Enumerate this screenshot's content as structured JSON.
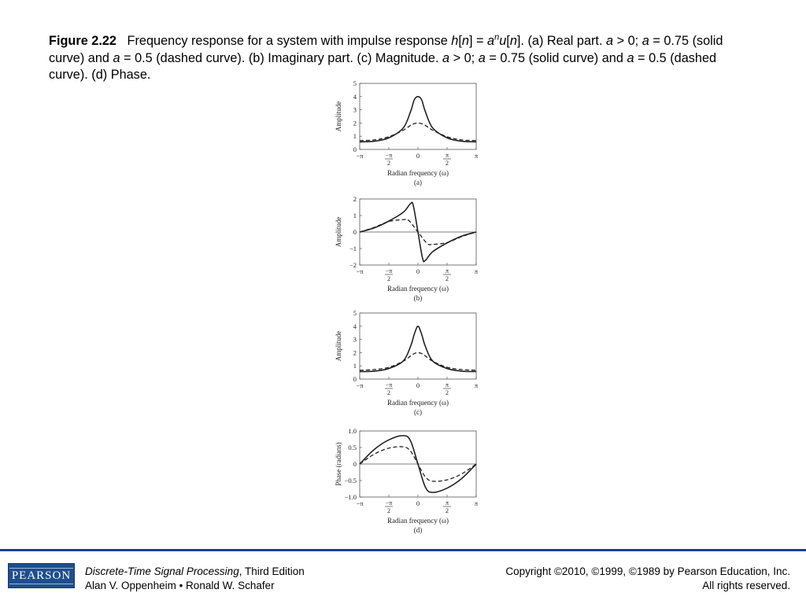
{
  "caption": {
    "figure_number": "Figure 2.22",
    "p1": "Frequency response for a system with impulse response ",
    "v_h": "h",
    "p2": "[",
    "v_n1": "n",
    "p3": "] = ",
    "v_a1": "a",
    "sup_n": "n",
    "v_u": "u",
    "p4": "[",
    "v_n2": "n",
    "p5": "]. (a) Real part. ",
    "v_a2": "a",
    "p6": " > 0; ",
    "v_a3": "a",
    "p7": " = 0.75 (solid curve) and ",
    "v_a4": "a",
    "p8": " = 0.5 (dashed curve). (b) Imaginary part. (c) Magnitude. ",
    "v_a5": "a",
    "p9": " > 0; ",
    "v_a6": "a",
    "p10": " = 0.75 (solid curve) and ",
    "v_a7": "a",
    "p11": " = 0.5 (dashed curve). (d) Phase."
  },
  "footer": {
    "book_title": "Discrete-Time Signal Processing",
    "edition": ", Third Edition",
    "authors": "Alan V. Oppenheim • Ronald W. Schafer",
    "copyright": "Copyright ©2010, ©1999, ©1989 by Pearson Education, Inc.",
    "rights": "All rights reserved.",
    "logo_text": "PEARSON"
  },
  "colors": {
    "footer_rule": "#1f3a93",
    "logo_bg": "#1f4e8c",
    "curve": "#222222"
  },
  "chart_data": [
    {
      "type": "line",
      "panel_label": "(a)",
      "xlabel": "Radian frequency (ω)",
      "ylabel": "Amplitude",
      "xlim": [
        -3.1416,
        3.1416
      ],
      "ylim": [
        0,
        5
      ],
      "yticks": [
        0,
        1,
        2,
        3,
        4,
        5
      ],
      "ytick_labels": [
        "0",
        "1",
        "2",
        "3",
        "4",
        "5"
      ],
      "xticks": [
        -3.1416,
        -1.5708,
        0,
        1.5708,
        3.1416
      ],
      "xtick_labels": [
        "−π",
        "−π/2",
        "0",
        "π/2",
        "π"
      ],
      "zero_line": false,
      "series": [
        {
          "style": "solid",
          "x": [
            -3.1416,
            -2.3562,
            -1.5708,
            -0.7854,
            -0.3927,
            -0.1963,
            0,
            0.1963,
            0.3927,
            0.7854,
            1.5708,
            2.3562,
            3.1416
          ],
          "y": [
            0.57,
            0.62,
            0.88,
            1.64,
            2.89,
            3.76,
            4.0,
            3.76,
            2.89,
            1.64,
            0.88,
            0.62,
            0.57
          ]
        },
        {
          "style": "dashed",
          "x": [
            -3.1416,
            -2.3562,
            -1.5708,
            -0.7854,
            -0.3927,
            -0.1963,
            0,
            0.1963,
            0.3927,
            0.7854,
            1.5708,
            2.3562,
            3.1416
          ],
          "y": [
            0.67,
            0.72,
            0.96,
            1.46,
            1.83,
            1.95,
            2.0,
            1.95,
            1.83,
            1.46,
            0.96,
            0.72,
            0.67
          ]
        }
      ]
    },
    {
      "type": "line",
      "panel_label": "(b)",
      "xlabel": "Radian frequency (ω)",
      "ylabel": "Amplitude",
      "xlim": [
        -3.1416,
        3.1416
      ],
      "ylim": [
        -2,
        2
      ],
      "yticks": [
        -2,
        -1,
        0,
        1,
        2
      ],
      "ytick_labels": [
        "−2",
        "−1",
        "0",
        "1",
        "2"
      ],
      "xticks": [
        -3.1416,
        -1.5708,
        0,
        1.5708,
        3.1416
      ],
      "xtick_labels": [
        "−π",
        "−π/2",
        "0",
        "π/2",
        "π"
      ],
      "zero_line": true,
      "series": [
        {
          "style": "solid",
          "x": [
            -3.1416,
            -2.3562,
            -1.5708,
            -0.7854,
            -0.4,
            -0.25,
            0,
            0.25,
            0.4,
            0.7854,
            1.5708,
            2.3562,
            3.1416
          ],
          "y": [
            0,
            0.25,
            0.66,
            1.2,
            1.72,
            1.6,
            0,
            -1.6,
            -1.72,
            -1.2,
            -0.66,
            -0.25,
            0
          ]
        },
        {
          "style": "dashed",
          "x": [
            -3.1416,
            -2.3562,
            -1.5708,
            -0.7854,
            -0.5,
            0,
            0.5,
            0.7854,
            1.5708,
            2.3562,
            3.1416
          ],
          "y": [
            0,
            0.28,
            0.64,
            0.75,
            0.7,
            0,
            -0.7,
            -0.75,
            -0.64,
            -0.28,
            0
          ]
        }
      ]
    },
    {
      "type": "line",
      "panel_label": "(c)",
      "xlabel": "Radian frequency (ω)",
      "ylabel": "Amplitude",
      "xlim": [
        -3.1416,
        3.1416
      ],
      "ylim": [
        0,
        5
      ],
      "yticks": [
        0,
        1,
        2,
        3,
        4,
        5
      ],
      "ytick_labels": [
        "0",
        "1",
        "2",
        "3",
        "4",
        "5"
      ],
      "xticks": [
        -3.1416,
        -1.5708,
        0,
        1.5708,
        3.1416
      ],
      "xtick_labels": [
        "−π",
        "−π/2",
        "0",
        "π/2",
        "π"
      ],
      "zero_line": false,
      "series": [
        {
          "style": "solid",
          "x": [
            -3.1416,
            -2.3562,
            -1.5708,
            -0.7854,
            -0.3927,
            -0.1963,
            0,
            0.1963,
            0.3927,
            0.7854,
            1.5708,
            2.3562,
            3.1416
          ],
          "y": [
            0.57,
            0.6,
            0.8,
            1.38,
            2.5,
            3.4,
            4.0,
            3.4,
            2.5,
            1.38,
            0.8,
            0.6,
            0.57
          ]
        },
        {
          "style": "dashed",
          "x": [
            -3.1416,
            -2.3562,
            -1.5708,
            -0.7854,
            -0.3927,
            -0.1963,
            0,
            0.1963,
            0.3927,
            0.7854,
            1.5708,
            2.3562,
            3.1416
          ],
          "y": [
            0.67,
            0.72,
            0.89,
            1.36,
            1.76,
            1.93,
            2.0,
            1.93,
            1.76,
            1.36,
            0.89,
            0.72,
            0.67
          ]
        }
      ]
    },
    {
      "type": "line",
      "panel_label": "(d)",
      "xlabel": "Radian frequency (ω)",
      "ylabel": "Phase (radians)",
      "xlim": [
        -3.1416,
        3.1416
      ],
      "ylim": [
        -1,
        1
      ],
      "yticks": [
        -1,
        -0.5,
        0,
        0.5,
        1
      ],
      "ytick_labels": [
        "−1.0",
        "−0.5",
        "0",
        "0.5",
        "1.0"
      ],
      "xticks": [
        -3.1416,
        -1.5708,
        0,
        1.5708,
        3.1416
      ],
      "xtick_labels": [
        "−π",
        "−π/2",
        "0",
        "π/2",
        "π"
      ],
      "zero_line": true,
      "series": [
        {
          "style": "solid",
          "x": [
            -3.1416,
            -2.3562,
            -1.5708,
            -0.7854,
            -0.4,
            0,
            0.4,
            0.7854,
            1.5708,
            2.3562,
            3.1416
          ],
          "y": [
            0,
            0.44,
            0.73,
            0.86,
            0.7,
            0,
            -0.7,
            -0.86,
            -0.73,
            -0.44,
            0
          ]
        },
        {
          "style": "dashed",
          "x": [
            -3.1416,
            -2.3562,
            -1.5708,
            -0.7854,
            -0.4,
            0,
            0.4,
            0.7854,
            1.5708,
            2.3562,
            3.1416
          ],
          "y": [
            0,
            0.3,
            0.48,
            0.52,
            0.39,
            0,
            -0.39,
            -0.52,
            -0.48,
            -0.3,
            0
          ]
        }
      ]
    }
  ]
}
